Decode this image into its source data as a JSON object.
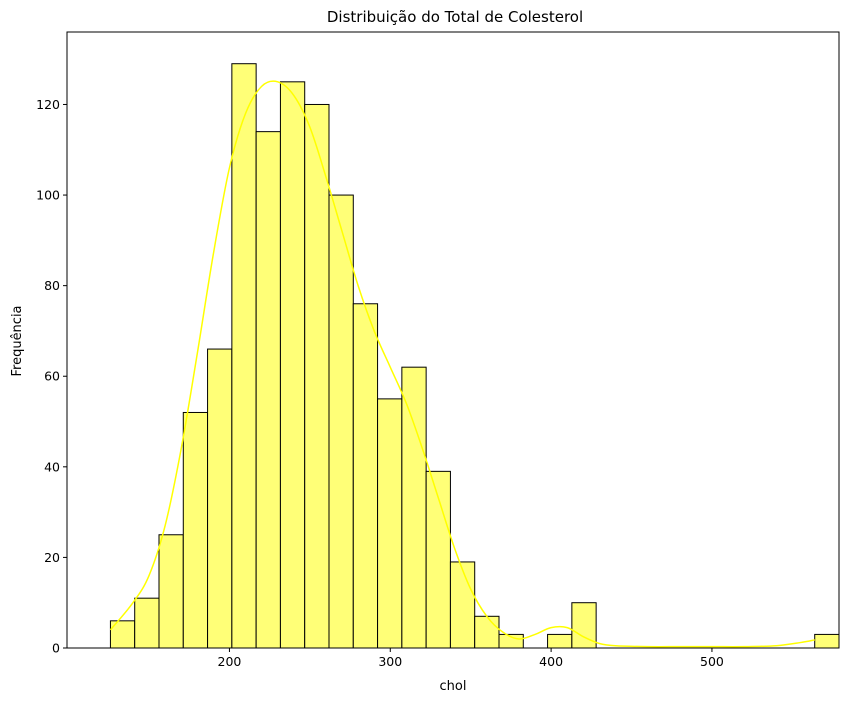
{
  "chart_data": {
    "type": "bar",
    "title": "Distribuição do Total de Colesterol",
    "xlabel": "chol",
    "ylabel": "Frequência",
    "bin_start": 126,
    "bin_width": 15.1,
    "values": [
      6,
      11,
      25,
      52,
      66,
      129,
      114,
      125,
      120,
      100,
      76,
      55,
      62,
      39,
      19,
      7,
      3,
      0,
      3,
      10,
      0,
      0,
      0,
      0,
      0,
      0,
      0,
      0,
      0,
      3
    ],
    "xlim": [
      99,
      579
    ],
    "ylim": [
      0,
      136
    ],
    "xticks": [
      200,
      300,
      400,
      500
    ],
    "yticks": [
      0,
      20,
      40,
      60,
      80,
      100,
      120
    ],
    "grid": false,
    "kde": {
      "x": [
        126,
        140,
        150,
        160,
        170,
        180,
        190,
        200,
        210,
        220,
        230,
        240,
        250,
        260,
        270,
        280,
        290,
        300,
        310,
        320,
        330,
        340,
        350,
        360,
        370,
        380,
        390,
        400,
        410,
        420,
        430,
        440,
        460,
        480,
        500,
        520,
        540,
        555,
        564
      ],
      "y": [
        4,
        10,
        16,
        27,
        44,
        65,
        87,
        106,
        118,
        124,
        125,
        122,
        115,
        104,
        92,
        80,
        70,
        62,
        54,
        44,
        33,
        22,
        13,
        7,
        3.5,
        2,
        3,
        4.5,
        4.5,
        2.5,
        1,
        0.5,
        0.3,
        0.3,
        0.3,
        0.3,
        0.5,
        1.2,
        1.8
      ]
    },
    "colors": {
      "bar_fill": "#ffff77",
      "bar_edge": "#000000",
      "kde_line": "#ffff00"
    }
  }
}
